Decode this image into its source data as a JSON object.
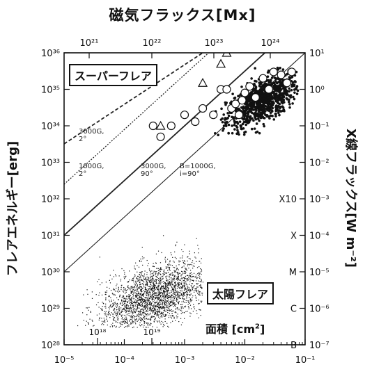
{
  "chart_data": {
    "type": "scatter",
    "title": "磁気フラックス[Mx]",
    "x_axis_bottom": {
      "label": "面積 [cm²]",
      "label_parts": [
        "面積 [cm",
        "2",
        "]"
      ],
      "scale": "log",
      "range": [
        1e-05,
        0.1
      ],
      "ticks": [
        "10⁻⁵",
        "10⁻⁴",
        "10⁻³",
        "10⁻²",
        "10⁻¹"
      ]
    },
    "x_axis_top": {
      "label": "磁気フラックス[Mx]",
      "scale": "log",
      "ticks": [
        "10²¹",
        "10²²",
        "10²³",
        "10²⁴"
      ],
      "tick_values": [
        1e+21,
        1e+22,
        1e+23,
        1e+24
      ]
    },
    "x_axis_inner": {
      "ticks": [
        "10¹⁸",
        "10¹⁹"
      ],
      "tick_values": [
        1e+18,
        1e+19
      ]
    },
    "y_axis_left": {
      "label": "フレアエネルギー[erg]",
      "scale": "log",
      "range": [
        1e+28,
        1e+36
      ],
      "ticks": [
        "10²⁸",
        "10²⁹",
        "10³⁰",
        "10³¹",
        "10³²",
        "10³³",
        "10³⁴",
        "10³⁵",
        "10³⁶"
      ]
    },
    "y_axis_right": {
      "label": "X線フラックス[W m⁻²]",
      "scale": "log",
      "ticks": [
        "10⁻⁷",
        "10⁻⁶",
        "10⁻⁵",
        "10⁻⁴",
        "10⁻³",
        "10⁻²",
        "10⁻¹",
        "10⁰",
        "10¹"
      ],
      "class_labels": [
        "B",
        "C",
        "M",
        "X",
        "X10"
      ]
    },
    "regions": {
      "superflare": "スーパーフレア",
      "solar_flare": "太陽フレア"
    },
    "reference_lines": [
      {
        "label": "3000G,\n2°",
        "style": "dashed",
        "slope": 1.5,
        "points": [
          [
            1e-05,
            3.2e+33
          ],
          [
            0.002,
            1e+36
          ]
        ]
      },
      {
        "label": "1000G,\n2°",
        "style": "dotted",
        "slope": 1.5,
        "points": [
          [
            1e-05,
            2.5e+32
          ],
          [
            0.01,
            8e+36
          ]
        ]
      },
      {
        "label": "3000G,\n90°",
        "style": "solid",
        "slope": 1.5,
        "points": [
          [
            1e-05,
            1e+31
          ],
          [
            0.1,
            1e+37
          ]
        ]
      },
      {
        "label": "B=1000G,\ni=90°",
        "style": "solid-thin",
        "slope": 1.5,
        "points": [
          [
            1e-05,
            1e+30
          ],
          [
            0.1,
            1e+36
          ]
        ]
      }
    ],
    "series": [
      {
        "marker": "filled-dot",
        "cluster": "superflares_dense",
        "x_range": [
          0.003,
          0.08
        ],
        "y_range": [
          5e+33,
          4e+35
        ],
        "approx_center": [
          0.02,
          5e+34
        ]
      },
      {
        "marker": "open-circle",
        "points": [
          [
            0.0003,
            1e+34
          ],
          [
            0.0004,
            5e+33
          ],
          [
            0.0006,
            1e+34
          ],
          [
            0.001,
            2e+34
          ],
          [
            0.0015,
            1.3e+34
          ],
          [
            0.002,
            3e+34
          ],
          [
            0.003,
            2e+34
          ],
          [
            0.004,
            1e+35
          ],
          [
            0.005,
            1e+35
          ],
          [
            0.006,
            3e+34
          ],
          [
            0.007,
            4e+34
          ],
          [
            0.008,
            2e+34
          ],
          [
            0.009,
            5e+34
          ],
          [
            0.01,
            8e+34
          ],
          [
            0.012,
            1.2e+35
          ],
          [
            0.015,
            6e+34
          ],
          [
            0.02,
            2e+35
          ],
          [
            0.025,
            1e+35
          ],
          [
            0.03,
            3e+35
          ],
          [
            0.04,
            2.5e+35
          ],
          [
            0.05,
            1.5e+35
          ],
          [
            0.06,
            3e+35
          ]
        ]
      },
      {
        "marker": "open-triangle",
        "points": [
          [
            0.0004,
            1e+34
          ],
          [
            0.002,
            1.5e+35
          ],
          [
            0.004,
            5e+35
          ],
          [
            0.005,
            1e+36
          ]
        ]
      },
      {
        "marker": "small-dot",
        "cluster": "solar_flares",
        "x_range": [
          1.5e-05,
          0.002
        ],
        "y_range": [
          3e+28,
          3e+31
        ],
        "approx_center": [
          0.0003,
          2e+29
        ]
      }
    ]
  }
}
